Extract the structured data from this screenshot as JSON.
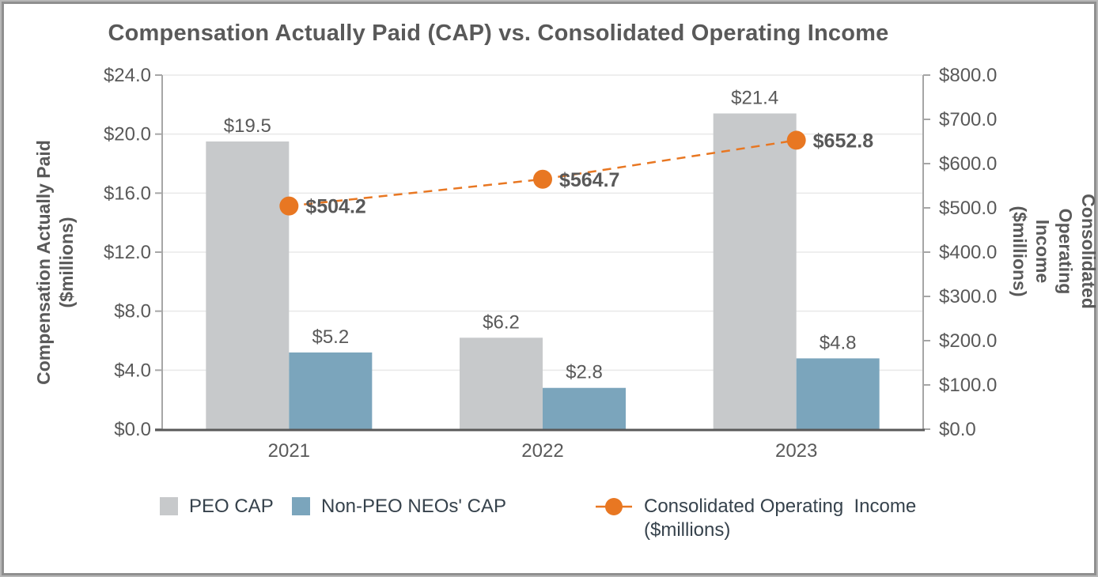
{
  "chart_data": {
    "type": "combo-bar-line",
    "title": "Compensation Actually Paid (CAP) vs. Consolidated Operating Income",
    "categories": [
      "2021",
      "2022",
      "2023"
    ],
    "series": [
      {
        "name": "PEO CAP",
        "chart_type": "bar",
        "axis": "left",
        "color": "#C7C9CB",
        "values": [
          19.5,
          6.2,
          21.4
        ],
        "data_labels": [
          "$19.5",
          "$6.2",
          "$21.4"
        ]
      },
      {
        "name": "Non-PEO NEOs' CAP",
        "chart_type": "bar",
        "axis": "left",
        "color": "#7BA5BC",
        "values": [
          5.2,
          2.8,
          4.8
        ],
        "data_labels": [
          "$5.2",
          "$2.8",
          "$4.8"
        ]
      },
      {
        "name": "Consolidated Operating  Income\n($millions)",
        "chart_type": "line",
        "line_style": "dashed",
        "marker": "circle",
        "axis": "right",
        "color": "#E87722",
        "values": [
          504.2,
          564.7,
          652.8
        ],
        "data_labels": [
          "$504.2",
          "$564.7",
          "$652.8"
        ]
      }
    ],
    "left_axis": {
      "title": "Compensation Actually Paid\n($millions)",
      "range": [
        0,
        24
      ],
      "tick_step": 4,
      "tick_labels": [
        "$0.0",
        "$4.0",
        "$8.0",
        "$12.0",
        "$16.0",
        "$20.0",
        "$24.0"
      ]
    },
    "right_axis": {
      "title": "Consolidated Operating Income\n($millions)",
      "range": [
        0,
        800
      ],
      "tick_step": 100,
      "tick_labels": [
        "$0.0",
        "$100.0",
        "$200.0",
        "$300.0",
        "$400.0",
        "$500.0",
        "$600.0",
        "$700.0",
        "$800.0"
      ]
    },
    "grid": true,
    "legend_position": "bottom"
  },
  "legend": {
    "items": [
      {
        "label": "PEO CAP",
        "swatch": "gray-square"
      },
      {
        "label": "Non-PEO NEOs' CAP",
        "swatch": "blue-square"
      },
      {
        "label": "Consolidated Operating  Income\n($millions)",
        "swatch": "orange-line-marker"
      }
    ]
  },
  "colors": {
    "bar_gray": "#C7C9CB",
    "bar_blue": "#7BA5BC",
    "line_orange": "#E87722",
    "text_gray": "#595959",
    "legend_text": "#36424C",
    "grid": "#E9E9E9",
    "axis_line": "#A6A6A6",
    "baseline": "#595959",
    "border": "#8F8F8F"
  }
}
